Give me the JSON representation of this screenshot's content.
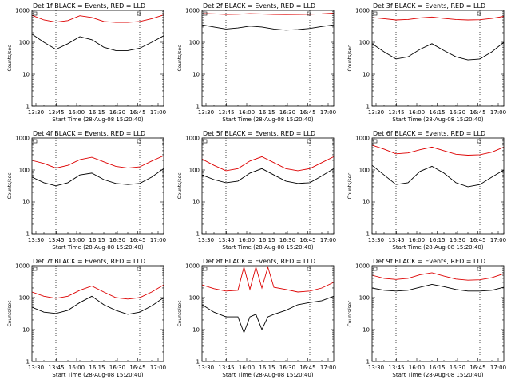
{
  "figure": {
    "xtick_labels": [
      "13:30",
      "13:45",
      "16:00",
      "16:15",
      "16:30",
      "16:45",
      "17:00"
    ],
    "ytick_labels": [
      "1",
      "10",
      "100",
      "1000"
    ],
    "xlabel": "Start Time (28-Aug-08 15:20:40)",
    "ylabel": "Counts/sec",
    "colors": {
      "events": "#000000",
      "lld": "#dd0000"
    }
  },
  "chart_data": [
    {
      "type": "line",
      "title": "Det 1f BLACK = Events, RED = LLD",
      "yscale": "log",
      "ylim": [
        1,
        1000
      ],
      "dotted_lines": [
        2,
        9
      ],
      "series": [
        {
          "color": "#000000",
          "x": [
            0,
            1,
            2,
            3,
            4,
            5,
            6,
            7,
            8,
            9,
            10,
            11
          ],
          "y": [
            180,
            100,
            60,
            90,
            150,
            120,
            70,
            55,
            55,
            65,
            100,
            160
          ]
        },
        {
          "color": "#dd0000",
          "x": [
            0,
            1,
            2,
            3,
            4,
            5,
            6,
            7,
            8,
            9,
            10,
            11
          ],
          "y": [
            700,
            500,
            430,
            480,
            680,
            600,
            450,
            420,
            420,
            450,
            550,
            720
          ]
        }
      ]
    },
    {
      "type": "line",
      "title": "Det 2f BLACK = Events, RED = LLD",
      "yscale": "log",
      "ylim": [
        1,
        1000
      ],
      "dotted_lines": [
        2,
        9
      ],
      "series": [
        {
          "color": "#000000",
          "x": [
            0,
            1,
            2,
            3,
            4,
            5,
            6,
            7,
            8,
            9,
            10,
            11
          ],
          "y": [
            350,
            300,
            260,
            280,
            320,
            300,
            260,
            240,
            250,
            270,
            310,
            350
          ]
        },
        {
          "color": "#dd0000",
          "x": [
            0,
            1,
            2,
            3,
            4,
            5,
            6,
            7,
            8,
            9,
            10,
            11
          ],
          "y": [
            800,
            780,
            750,
            760,
            790,
            770,
            750,
            740,
            745,
            760,
            780,
            820
          ]
        }
      ]
    },
    {
      "type": "line",
      "title": "Det 3f BLACK = Events, RED = LLD",
      "yscale": "log",
      "ylim": [
        1,
        1000
      ],
      "dotted_lines": [
        2,
        9
      ],
      "series": [
        {
          "color": "#000000",
          "x": [
            0,
            1,
            2,
            3,
            4,
            5,
            6,
            7,
            8,
            9,
            10,
            11
          ],
          "y": [
            90,
            50,
            30,
            35,
            60,
            90,
            55,
            35,
            28,
            30,
            50,
            100
          ]
        },
        {
          "color": "#dd0000",
          "x": [
            0,
            1,
            2,
            3,
            4,
            5,
            6,
            7,
            8,
            9,
            10,
            11
          ],
          "y": [
            600,
            550,
            500,
            520,
            580,
            620,
            560,
            520,
            500,
            510,
            560,
            650
          ]
        }
      ]
    },
    {
      "type": "line",
      "title": "Det 4f BLACK = Events, RED = LLD",
      "yscale": "log",
      "ylim": [
        1,
        1000
      ],
      "dotted_lines": [
        2,
        9
      ],
      "series": [
        {
          "color": "#000000",
          "x": [
            0,
            1,
            2,
            3,
            4,
            5,
            6,
            7,
            8,
            9,
            10,
            11
          ],
          "y": [
            60,
            40,
            32,
            40,
            70,
            80,
            50,
            38,
            35,
            38,
            60,
            110
          ]
        },
        {
          "color": "#dd0000",
          "x": [
            0,
            1,
            2,
            3,
            4,
            5,
            6,
            7,
            8,
            9,
            10,
            11
          ],
          "y": [
            200,
            160,
            115,
            140,
            210,
            250,
            180,
            130,
            115,
            125,
            190,
            280
          ]
        }
      ]
    },
    {
      "type": "line",
      "title": "Det 5f BLACK = Events, RED = LLD",
      "yscale": "log",
      "ylim": [
        1,
        1000
      ],
      "dotted_lines": [
        2,
        9
      ],
      "series": [
        {
          "color": "#000000",
          "x": [
            0,
            1,
            2,
            3,
            4,
            5,
            6,
            7,
            8,
            9,
            10,
            11
          ],
          "y": [
            70,
            50,
            40,
            45,
            80,
            110,
            70,
            45,
            38,
            40,
            65,
            110
          ]
        },
        {
          "color": "#dd0000",
          "x": [
            0,
            1,
            2,
            3,
            4,
            5,
            6,
            7,
            8,
            9,
            10,
            11
          ],
          "y": [
            220,
            140,
            95,
            110,
            190,
            260,
            170,
            110,
            95,
            110,
            170,
            260
          ]
        }
      ]
    },
    {
      "type": "line",
      "title": "Det 6f BLACK = Events, RED = LLD",
      "yscale": "log",
      "ylim": [
        1,
        1000
      ],
      "dotted_lines": [
        2,
        9
      ],
      "series": [
        {
          "color": "#000000",
          "x": [
            0,
            1,
            2,
            3,
            4,
            5,
            6,
            7,
            8,
            9,
            10,
            11
          ],
          "y": [
            140,
            70,
            35,
            40,
            90,
            130,
            80,
            40,
            30,
            35,
            60,
            100
          ]
        },
        {
          "color": "#dd0000",
          "x": [
            0,
            1,
            2,
            3,
            4,
            5,
            6,
            7,
            8,
            9,
            10,
            11
          ],
          "y": [
            600,
            450,
            320,
            340,
            430,
            520,
            400,
            310,
            290,
            300,
            360,
            520
          ]
        }
      ]
    },
    {
      "type": "line",
      "title": "Det 7f BLACK = Events, RED = LLD",
      "yscale": "log",
      "ylim": [
        1,
        1000
      ],
      "dotted_lines": [
        2,
        9
      ],
      "series": [
        {
          "color": "#000000",
          "x": [
            0,
            1,
            2,
            3,
            4,
            5,
            6,
            7,
            8,
            9,
            10,
            11
          ],
          "y": [
            50,
            35,
            32,
            40,
            70,
            110,
            60,
            40,
            30,
            35,
            55,
            100
          ]
        },
        {
          "color": "#dd0000",
          "x": [
            0,
            1,
            2,
            3,
            4,
            5,
            6,
            7,
            8,
            9,
            10,
            11
          ],
          "y": [
            150,
            110,
            95,
            110,
            170,
            230,
            150,
            100,
            90,
            100,
            150,
            250
          ]
        }
      ]
    },
    {
      "type": "line",
      "title": "Det 8f BLACK = Events, RED = LLD",
      "yscale": "log",
      "ylim": [
        1,
        1000
      ],
      "dotted_lines": [
        2,
        9
      ],
      "series": [
        {
          "color": "#000000",
          "x": [
            0,
            1,
            2,
            3,
            3.5,
            4,
            4.5,
            5,
            5.5,
            6,
            7,
            8,
            9,
            10,
            11
          ],
          "y": [
            60,
            35,
            25,
            25,
            8,
            25,
            30,
            10,
            25,
            30,
            40,
            60,
            70,
            80,
            110
          ]
        },
        {
          "color": "#dd0000",
          "x": [
            0,
            1,
            2,
            3,
            3.5,
            4,
            4.5,
            5,
            5.5,
            6,
            7,
            8,
            9,
            10,
            11
          ],
          "y": [
            250,
            190,
            160,
            170,
            900,
            180,
            900,
            200,
            900,
            210,
            180,
            150,
            160,
            200,
            300
          ]
        }
      ]
    },
    {
      "type": "line",
      "title": "Det 9f BLACK = Events, RED = LLD",
      "yscale": "log",
      "ylim": [
        1,
        1000
      ],
      "dotted_lines": [
        2,
        9
      ],
      "series": [
        {
          "color": "#000000",
          "x": [
            0,
            1,
            2,
            3,
            4,
            5,
            6,
            7,
            8,
            9,
            10,
            11
          ],
          "y": [
            200,
            170,
            160,
            170,
            210,
            260,
            220,
            180,
            160,
            160,
            170,
            210
          ]
        },
        {
          "color": "#dd0000",
          "x": [
            0,
            1,
            2,
            3,
            4,
            5,
            6,
            7,
            8,
            9,
            10,
            11
          ],
          "y": [
            500,
            400,
            370,
            400,
            520,
            600,
            470,
            380,
            350,
            360,
            420,
            560
          ]
        }
      ]
    }
  ]
}
